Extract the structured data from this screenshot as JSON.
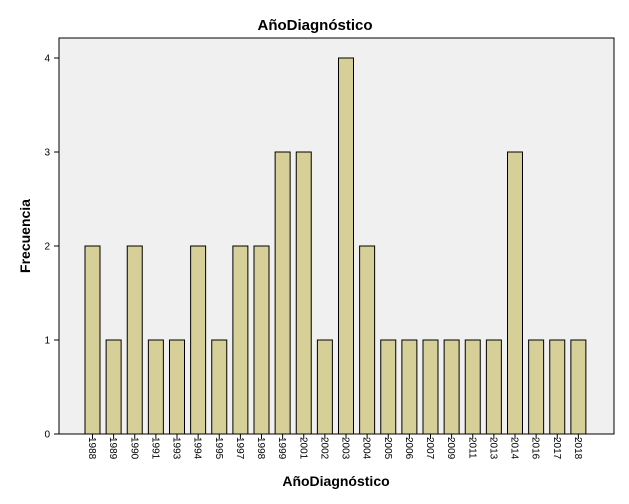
{
  "chart_data": {
    "type": "bar",
    "title": "AñoDiagnóstico",
    "xlabel": "AñoDiagnóstico",
    "ylabel": "Frecuencia",
    "categories": [
      "1988",
      "1989",
      "1990",
      "1991",
      "1993",
      "1994",
      "1995",
      "1997",
      "1998",
      "1999",
      "2001",
      "2002",
      "2003",
      "2004",
      "2005",
      "2006",
      "2007",
      "2009",
      "2011",
      "2013",
      "2014",
      "2016",
      "2017",
      "2018"
    ],
    "values": [
      2,
      1,
      2,
      1,
      1,
      2,
      1,
      2,
      2,
      3,
      3,
      1,
      4,
      2,
      1,
      1,
      1,
      1,
      1,
      1,
      3,
      1,
      1,
      1
    ],
    "yticks": [
      0,
      1,
      2,
      3,
      4
    ],
    "ylim": [
      0,
      4.4
    ],
    "grid": false,
    "colors": {
      "bar_fill": "#d6cf98",
      "bar_stroke": "#000000",
      "plot_background": "#f0f0f0",
      "page_background": "#ffffff"
    }
  }
}
